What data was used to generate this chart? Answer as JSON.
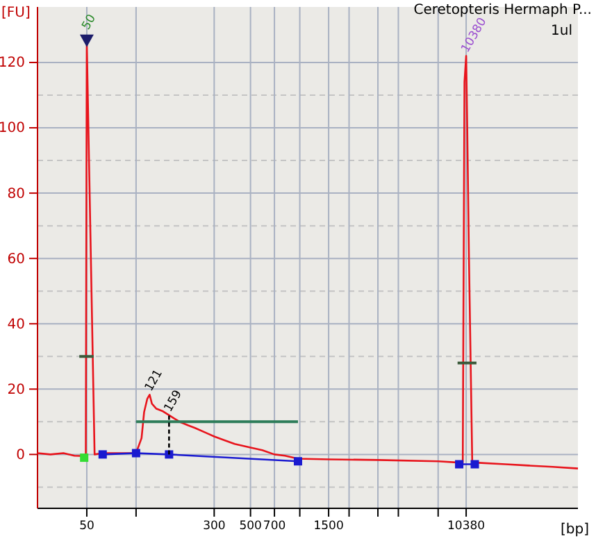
{
  "chart_data": {
    "type": "line",
    "title": "Ceretopteris Hermaph P...",
    "subtitle": "1ul",
    "xlabel": "[bp]",
    "ylabel": "[FU]",
    "xlim": [
      25,
      50000
    ],
    "ylim": [
      -16.5,
      137
    ],
    "log": "x",
    "xticks": [
      50,
      {
        "value": 100,
        "label": null
      },
      300,
      500,
      700,
      {
        "value": 1000,
        "label": null
      },
      1500,
      {
        "value": 2000,
        "label": null
      },
      {
        "value": 3000,
        "label": null
      },
      {
        "value": 4000,
        "label": null
      },
      {
        "value": 7000,
        "label": null
      },
      10380
    ],
    "yticks": [
      0,
      20,
      40,
      60,
      80,
      100,
      120
    ],
    "grid": true,
    "series": [
      {
        "type": "line",
        "color": "#e8141c",
        "marker": "none",
        "x": [
          25,
          30,
          36,
          42,
          48.2,
          49.3,
          50,
          55.8,
          62.5,
          83,
          100,
          108,
          112,
          117,
          121,
          125,
          133,
          146,
          159,
          171,
          188,
          208,
          229,
          271,
          300,
          340,
          400,
          500,
          590,
          700,
          812,
          975,
          1500,
          3000,
          7000,
          9414,
          9897,
          10138,
          10380,
          10539,
          10800,
          11310,
          11720,
          18000,
          25000,
          35000,
          50000
        ],
        "values": [
          0.4,
          0,
          0.4,
          -0.4,
          -0.5,
          0,
          126,
          0,
          0.4,
          0.4,
          0.4,
          5,
          13,
          17,
          18.3,
          15.5,
          14,
          13.2,
          12,
          11,
          9.8,
          8.9,
          8.1,
          6.5,
          5.5,
          4.5,
          3.2,
          2.1,
          1.3,
          0,
          -0.4,
          -1.3,
          -1.5,
          -1.7,
          -2.1,
          -2.5,
          -2.5,
          114,
          122,
          100,
          60,
          -2.8,
          -2.5,
          -3,
          -3.4,
          -3.8,
          -4.3
        ]
      },
      {
        "type": "line",
        "color": "#1a1ad0",
        "marker": "square",
        "x": [
          62.5,
          100,
          159,
          975,
          5000,
          9414,
          11720
        ],
        "values": [
          0,
          0.4,
          0,
          -2.1,
          null,
          -3,
          -3
        ]
      },
      {
        "type": "scatter",
        "color": "#33dd33",
        "marker": "square",
        "x": [
          48.2
        ],
        "values": [
          -1
        ]
      },
      {
        "type": "line",
        "color": "#2e7d5a",
        "marker": "none",
        "x": [
          100,
          975
        ],
        "values": [
          10,
          10
        ]
      },
      {
        "type": "line",
        "color": "#000000",
        "marker": "none",
        "line_style": "dashed",
        "x": [
          159,
          159
        ],
        "values": [
          0,
          12
        ]
      },
      {
        "type": "line",
        "color": "#3a5a3a",
        "marker": "none",
        "x": [
          45,
          55
        ],
        "values": [
          30,
          30
        ]
      },
      {
        "type": "line",
        "color": "#3a5a3a",
        "marker": "none",
        "x": [
          9200,
          12000
        ],
        "values": [
          28,
          28
        ]
      }
    ],
    "annotations": [
      {
        "text": "50",
        "x": 50,
        "y": 126
      },
      {
        "text": "10380",
        "x": 10380,
        "y": 122
      },
      {
        "text": "121",
        "x": 121,
        "y": 18.3
      },
      {
        "text": "159",
        "x": 159,
        "y": 12
      }
    ]
  }
}
